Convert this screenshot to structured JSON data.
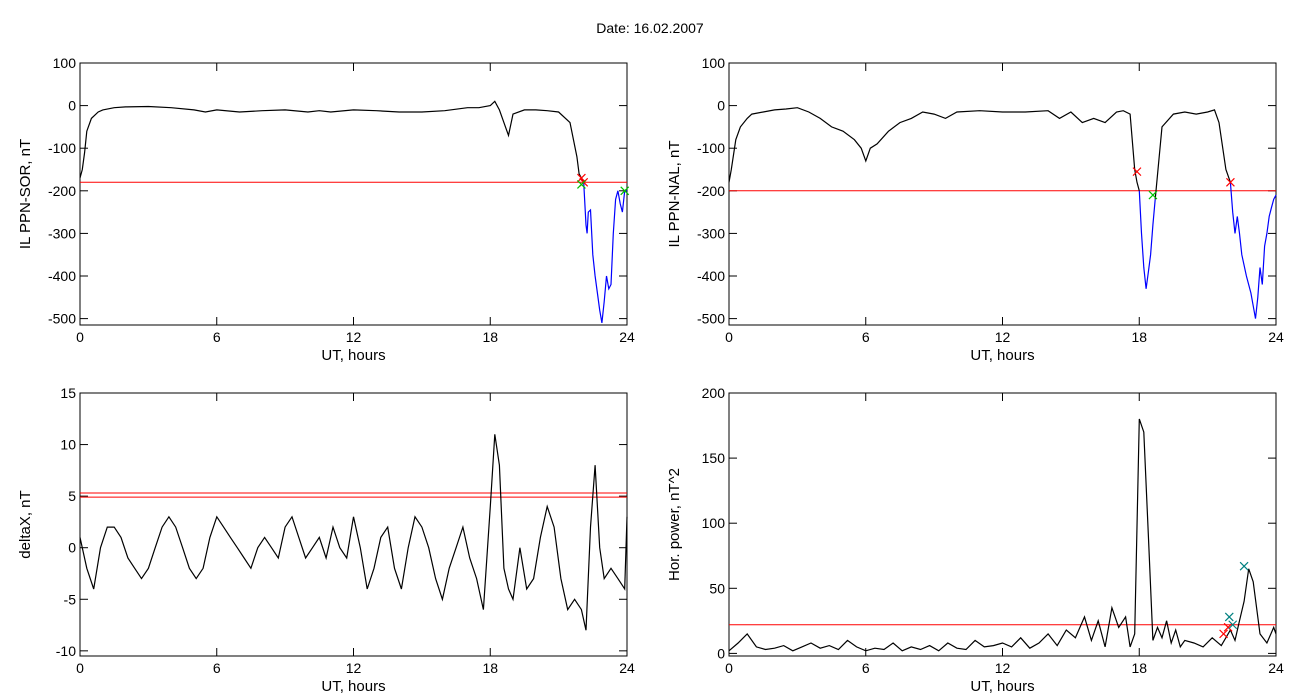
{
  "header": {
    "title": "Date:  16.02.2007"
  },
  "chart_data": [
    {
      "type": "line",
      "id": "p1",
      "xlabel": "UT, hours",
      "ylabel": "IL PPN-SOR, nT",
      "xlim": [
        0,
        24
      ],
      "ylim": [
        -515,
        100
      ],
      "xticks": [
        0,
        6,
        12,
        18,
        24
      ],
      "yticks": [
        100,
        0,
        -100,
        -200,
        -300,
        -400,
        -500
      ],
      "threshold_lines": [
        {
          "y": -180,
          "color": "#ff0000"
        }
      ],
      "series": [
        {
          "color": "#000000",
          "x": [
            0,
            0.1,
            0.2,
            0.3,
            0.5,
            0.8,
            1,
            1.5,
            2,
            3,
            4,
            5,
            5.5,
            6,
            7,
            8,
            9,
            10,
            10.5,
            11,
            12,
            13,
            14,
            15,
            16,
            17,
            17.5,
            18,
            18.2,
            18.4,
            18.6,
            18.8,
            19,
            19.5,
            20,
            20.5,
            21,
            21.5,
            21.8,
            21.9,
            22.0,
            22.1
          ],
          "y": [
            -170,
            -150,
            -110,
            -60,
            -30,
            -15,
            -10,
            -5,
            -3,
            -2,
            -5,
            -10,
            -15,
            -10,
            -15,
            -12,
            -10,
            -15,
            -12,
            -15,
            -10,
            -12,
            -15,
            -15,
            -12,
            -5,
            -5,
            0,
            10,
            -10,
            -40,
            -70,
            -20,
            -10,
            -10,
            -12,
            -15,
            -40,
            -120,
            -160,
            -170,
            -180
          ]
        },
        {
          "color": "#0000ff",
          "x": [
            22.1,
            22.2,
            22.25,
            22.3,
            22.4,
            22.5,
            22.6,
            22.7,
            22.8,
            22.9,
            23.0,
            23.1,
            23.2,
            23.3,
            23.4,
            23.5,
            23.6,
            23.7,
            23.8,
            23.9,
            24.0
          ],
          "y": [
            -180,
            -280,
            -300,
            -250,
            -245,
            -350,
            -400,
            -440,
            -480,
            -510,
            -460,
            -400,
            -430,
            -420,
            -300,
            -220,
            -200,
            -230,
            -250,
            -200,
            -200
          ]
        }
      ],
      "markers": [
        {
          "x": 22.0,
          "y": -170,
          "color": "#ff0000"
        },
        {
          "x": 22.1,
          "y": -180,
          "color": "#ff0000"
        },
        {
          "x": 22.0,
          "y": -185,
          "color": "#00c000"
        },
        {
          "x": 23.9,
          "y": -200,
          "color": "#00c000"
        }
      ]
    },
    {
      "type": "line",
      "id": "p2",
      "xlabel": "UT, hours",
      "ylabel": "IL PPN-NAL, nT",
      "xlim": [
        0,
        24
      ],
      "ylim": [
        -515,
        100
      ],
      "xticks": [
        0,
        6,
        12,
        18,
        24
      ],
      "yticks": [
        100,
        0,
        -100,
        -200,
        -300,
        -400,
        -500
      ],
      "threshold_lines": [
        {
          "y": -200,
          "color": "#ff0000"
        }
      ],
      "series": [
        {
          "color": "#000000",
          "x": [
            0,
            0.1,
            0.3,
            0.5,
            0.8,
            1,
            1.5,
            2,
            2.5,
            3,
            3.5,
            4,
            4.5,
            5,
            5.5,
            5.8,
            6,
            6.2,
            6.5,
            7,
            7.5,
            8,
            8.5,
            9,
            9.5,
            10,
            11,
            12,
            13,
            14,
            14.5,
            15,
            15.5,
            16,
            16.5,
            17,
            17.3,
            17.6,
            17.8,
            17.9,
            18.0
          ],
          "y": [
            -180,
            -150,
            -80,
            -50,
            -30,
            -20,
            -15,
            -10,
            -8,
            -5,
            -15,
            -30,
            -50,
            -60,
            -80,
            -100,
            -130,
            -100,
            -90,
            -60,
            -40,
            -30,
            -15,
            -20,
            -30,
            -15,
            -12,
            -15,
            -15,
            -12,
            -30,
            -15,
            -40,
            -30,
            -40,
            -15,
            -12,
            -20,
            -150,
            -180,
            -200
          ]
        },
        {
          "color": "#0000ff",
          "x": [
            18.0,
            18.1,
            18.2,
            18.3,
            18.4,
            18.5,
            18.6,
            18.7
          ],
          "y": [
            -200,
            -300,
            -380,
            -430,
            -390,
            -350,
            -280,
            -220
          ]
        },
        {
          "color": "#000000",
          "x": [
            18.7,
            19,
            19.5,
            20,
            20.5,
            21,
            21.3,
            21.5,
            21.8,
            22.0
          ],
          "y": [
            -220,
            -50,
            -20,
            -15,
            -20,
            -15,
            -10,
            -40,
            -150,
            -180
          ]
        },
        {
          "color": "#0000ff",
          "x": [
            22.0,
            22.1,
            22.2,
            22.3,
            22.4,
            22.5,
            22.7,
            22.9,
            23.0,
            23.1,
            23.2,
            23.3,
            23.4,
            23.5,
            23.6,
            23.7,
            23.8,
            23.9,
            24.0
          ],
          "y": [
            -180,
            -250,
            -300,
            -260,
            -300,
            -350,
            -400,
            -440,
            -470,
            -500,
            -450,
            -380,
            -420,
            -330,
            -300,
            -260,
            -240,
            -220,
            -210
          ]
        }
      ],
      "markers": [
        {
          "x": 17.9,
          "y": -155,
          "color": "#ff0000"
        },
        {
          "x": 18.6,
          "y": -210,
          "color": "#00c000"
        },
        {
          "x": 22.0,
          "y": -180,
          "color": "#ff0000"
        }
      ]
    },
    {
      "type": "line",
      "id": "p3",
      "xlabel": "UT, hours",
      "ylabel": "deltaX, nT",
      "xlim": [
        0,
        24
      ],
      "ylim": [
        -10.5,
        15
      ],
      "xticks": [
        0,
        6,
        12,
        18,
        24
      ],
      "yticks": [
        15,
        10,
        5,
        0,
        -5,
        -10
      ],
      "threshold_lines": [
        {
          "y": 5.3,
          "color": "#ff0000"
        },
        {
          "y": 4.9,
          "color": "#ff0000"
        }
      ],
      "series": [
        {
          "color": "#000000",
          "x": [
            0,
            0.3,
            0.6,
            0.9,
            1.2,
            1.5,
            1.8,
            2.1,
            2.4,
            2.7,
            3.0,
            3.3,
            3.6,
            3.9,
            4.2,
            4.5,
            4.8,
            5.1,
            5.4,
            5.7,
            6.0,
            6.3,
            6.6,
            6.9,
            7.2,
            7.5,
            7.8,
            8.1,
            8.4,
            8.7,
            9.0,
            9.3,
            9.6,
            9.9,
            10.2,
            10.5,
            10.8,
            11.1,
            11.4,
            11.7,
            12.0,
            12.3,
            12.6,
            12.9,
            13.2,
            13.5,
            13.8,
            14.1,
            14.4,
            14.7,
            15.0,
            15.3,
            15.6,
            15.9,
            16.2,
            16.5,
            16.8,
            17.1,
            17.4,
            17.7,
            18.0,
            18.2,
            18.4,
            18.6,
            18.8,
            19.0,
            19.3,
            19.6,
            19.9,
            20.2,
            20.5,
            20.8,
            21.1,
            21.4,
            21.7,
            22.0,
            22.2,
            22.4,
            22.6,
            22.8,
            23.0,
            23.3,
            23.6,
            23.9,
            24.0
          ],
          "y": [
            1,
            -2,
            -4,
            0,
            2,
            2,
            1,
            -1,
            -2,
            -3,
            -2,
            0,
            2,
            3,
            2,
            0,
            -2,
            -3,
            -2,
            1,
            3,
            2,
            1,
            0,
            -1,
            -2,
            0,
            1,
            0,
            -1,
            2,
            3,
            1,
            -1,
            0,
            1,
            -1,
            2,
            0,
            -1,
            3,
            0,
            -4,
            -2,
            1,
            2,
            -2,
            -4,
            0,
            3,
            2,
            0,
            -3,
            -5,
            -2,
            0,
            2,
            -1,
            -3,
            -6,
            4,
            11,
            8,
            -2,
            -4,
            -5,
            0,
            -4,
            -3,
            1,
            4,
            2,
            -3,
            -6,
            -5,
            -6,
            -8,
            2,
            8,
            0,
            -3,
            -2,
            -3,
            -4,
            3
          ]
        }
      ],
      "markers": []
    },
    {
      "type": "line",
      "id": "p4",
      "xlabel": "UT, hours",
      "ylabel": "Hor. power, nT^2",
      "xlim": [
        0,
        24
      ],
      "ylim": [
        -2,
        200
      ],
      "xticks": [
        0,
        6,
        12,
        18,
        24
      ],
      "yticks": [
        200,
        150,
        100,
        50,
        0
      ],
      "threshold_lines": [
        {
          "y": 22,
          "color": "#ff0000"
        }
      ],
      "series": [
        {
          "color": "#000000",
          "x": [
            0,
            0.4,
            0.8,
            1.2,
            1.6,
            2.0,
            2.4,
            2.8,
            3.2,
            3.6,
            4.0,
            4.4,
            4.8,
            5.2,
            5.6,
            6.0,
            6.4,
            6.8,
            7.2,
            7.6,
            8.0,
            8.4,
            8.8,
            9.2,
            9.6,
            10.0,
            10.4,
            10.8,
            11.2,
            11.6,
            12.0,
            12.4,
            12.8,
            13.2,
            13.6,
            14.0,
            14.4,
            14.8,
            15.2,
            15.6,
            15.9,
            16.2,
            16.5,
            16.8,
            17.1,
            17.4,
            17.6,
            17.8,
            18.0,
            18.2,
            18.4,
            18.6,
            18.8,
            19.0,
            19.2,
            19.4,
            19.6,
            19.8,
            20.0,
            20.4,
            20.8,
            21.2,
            21.6,
            22.0,
            22.2,
            22.4,
            22.6,
            22.8,
            23.0,
            23.3,
            23.6,
            23.9,
            24.0
          ],
          "y": [
            2,
            8,
            15,
            5,
            3,
            4,
            6,
            2,
            5,
            8,
            4,
            6,
            3,
            10,
            5,
            2,
            4,
            3,
            8,
            2,
            5,
            3,
            6,
            2,
            8,
            4,
            3,
            10,
            5,
            6,
            8,
            5,
            12,
            4,
            8,
            15,
            6,
            18,
            12,
            28,
            10,
            25,
            5,
            35,
            20,
            28,
            5,
            15,
            180,
            170,
            90,
            10,
            20,
            12,
            25,
            8,
            18,
            5,
            10,
            8,
            5,
            12,
            6,
            18,
            10,
            25,
            40,
            65,
            55,
            15,
            8,
            20,
            15
          ]
        }
      ],
      "markers": [
        {
          "x": 21.7,
          "y": 15,
          "color": "#ff0000"
        },
        {
          "x": 21.9,
          "y": 20,
          "color": "#ff0000"
        },
        {
          "x": 21.95,
          "y": 28,
          "color": "#008080"
        },
        {
          "x": 22.1,
          "y": 22,
          "color": "#008080"
        },
        {
          "x": 22.6,
          "y": 67,
          "color": "#008080"
        }
      ]
    }
  ]
}
